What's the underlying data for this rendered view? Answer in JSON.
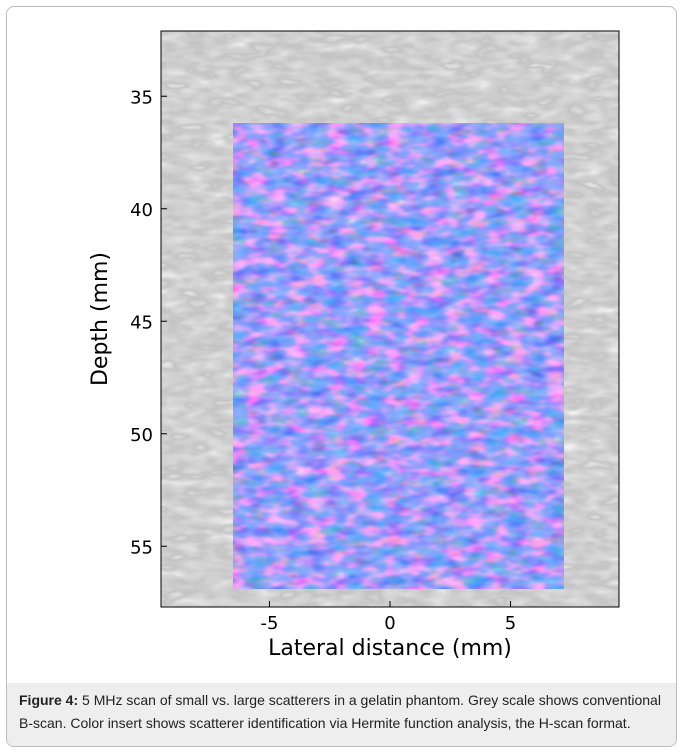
{
  "chart_data": {
    "type": "image",
    "xlabel": "Lateral distance (mm)",
    "ylabel": "Depth (mm)",
    "xlim": [
      -9.5,
      9.5
    ],
    "ylim": [
      32.1,
      57.7
    ],
    "xticks": [
      -5,
      0,
      5
    ],
    "yticks": [
      35,
      40,
      45,
      50,
      55
    ],
    "y_inverted": true,
    "insert": {
      "xlim": [
        -6.5,
        7.2
      ],
      "ylim": [
        36.2,
        56.9
      ]
    }
  },
  "caption": {
    "label": "Figure 4:",
    "text": "5 MHz scan of small vs. large scatterers in a gelatin phantom. Grey scale shows conventional B-scan. Color insert shows scatterer identification via Hermite function analysis, the H-scan format."
  }
}
